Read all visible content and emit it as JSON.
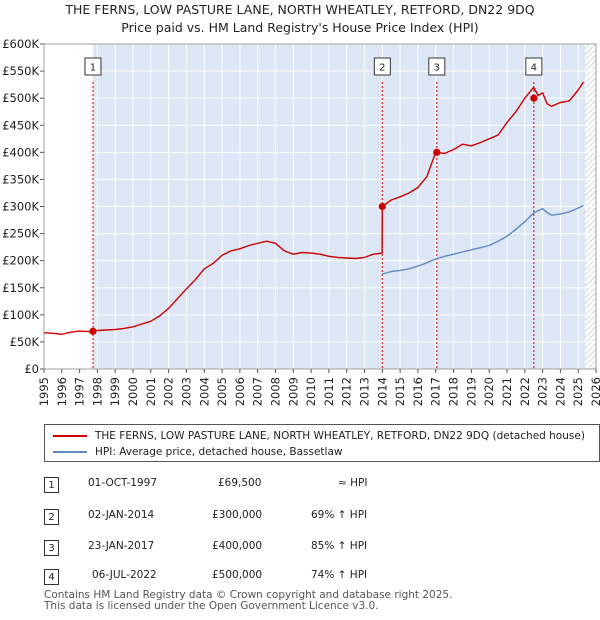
{
  "chart_data": {
    "type": "line",
    "title": "THE FERNS, LOW PASTURE LANE, NORTH WHEATLEY, RETFORD, DN22 9DQ",
    "subtitle": "Price paid vs. HM Land Registry's House Price Index (HPI)",
    "xlim": [
      1995,
      2026
    ],
    "ylim": [
      0,
      600000
    ],
    "x_ticks": [
      "1995",
      "1996",
      "1997",
      "1998",
      "1999",
      "2000",
      "2001",
      "2002",
      "2003",
      "2004",
      "2005",
      "2006",
      "2007",
      "2008",
      "2009",
      "2010",
      "2011",
      "2012",
      "2013",
      "2014",
      "2015",
      "2016",
      "2017",
      "2018",
      "2019",
      "2020",
      "2021",
      "2022",
      "2023",
      "2024",
      "2025",
      "2026"
    ],
    "y_ticks": [
      {
        "value": 0,
        "label": "£0"
      },
      {
        "value": 50000,
        "label": "£50K"
      },
      {
        "value": 100000,
        "label": "£100K"
      },
      {
        "value": 150000,
        "label": "£150K"
      },
      {
        "value": 200000,
        "label": "£200K"
      },
      {
        "value": 250000,
        "label": "£250K"
      },
      {
        "value": 300000,
        "label": "£300K"
      },
      {
        "value": 350000,
        "label": "£350K"
      },
      {
        "value": 400000,
        "label": "£400K"
      },
      {
        "value": 450000,
        "label": "£450K"
      },
      {
        "value": 500000,
        "label": "£500K"
      },
      {
        "value": 550000,
        "label": "£550K"
      },
      {
        "value": 600000,
        "label": "£600K"
      }
    ],
    "shaded_region": {
      "from": 1997.75,
      "to": 2025.4,
      "color": "#dde6f4"
    },
    "hatch_from": 2025.4,
    "series": [
      {
        "name": "THE FERNS, LOW PASTURE LANE, NORTH WHEATLEY, RETFORD, DN22 9DQ (detached house)",
        "color": "#cc0000",
        "x": [
          1995,
          1995.5,
          1996,
          1996.5,
          1997,
          1997.5,
          1997.75,
          1998,
          1998.5,
          1999,
          1999.5,
          2000,
          2000.5,
          2001,
          2001.5,
          2002,
          2002.5,
          2003,
          2003.5,
          2004,
          2004.5,
          2005,
          2005.5,
          2006,
          2006.5,
          2007,
          2007.5,
          2008,
          2008.5,
          2009,
          2009.5,
          2010,
          2010.5,
          2011,
          2011.5,
          2012,
          2012.5,
          2013,
          2013.5,
          2013.99,
          2014.0,
          2014.5,
          2015,
          2015.5,
          2016,
          2016.5,
          2017.0,
          2017.5,
          2018,
          2018.5,
          2019,
          2019.5,
          2020,
          2020.5,
          2021,
          2021.5,
          2022.0,
          2022.5,
          2022.75,
          2023,
          2023.25,
          2023.5,
          2024,
          2024.5,
          2025,
          2025.3
        ],
        "values": [
          67000,
          66000,
          64000,
          68000,
          70000,
          69000,
          69500,
          71000,
          72000,
          73000,
          75000,
          78000,
          83000,
          88000,
          98000,
          112000,
          130000,
          148000,
          165000,
          185000,
          195000,
          210000,
          218000,
          222000,
          228000,
          232000,
          236000,
          232000,
          218000,
          212000,
          215000,
          214000,
          212000,
          208000,
          206000,
          205000,
          204000,
          206000,
          212000,
          214000,
          300000,
          312000,
          318000,
          325000,
          335000,
          355000,
          400000,
          398000,
          405000,
          415000,
          412000,
          418000,
          425000,
          432000,
          455000,
          475000,
          500000,
          520000,
          505000,
          510000,
          490000,
          485000,
          492000,
          495000,
          515000,
          530000
        ]
      },
      {
        "name": "HPI: Average price, detached house, Bassetlaw",
        "color": "#5b8ac6",
        "x": [
          2013.99,
          2014.5,
          2015,
          2015.5,
          2016,
          2016.5,
          2017,
          2017.5,
          2018,
          2018.5,
          2019,
          2019.5,
          2020,
          2020.5,
          2021,
          2021.5,
          2022,
          2022.5,
          2022.75,
          2023,
          2023.25,
          2023.5,
          2024,
          2024.5,
          2025,
          2025.3
        ],
        "values": [
          175000,
          180000,
          182000,
          185000,
          190000,
          196000,
          203000,
          208000,
          212000,
          216000,
          220000,
          224000,
          228000,
          236000,
          245000,
          258000,
          272000,
          288000,
          292000,
          296000,
          289000,
          284000,
          286000,
          290000,
          297000,
          302000
        ]
      }
    ],
    "sales": [
      {
        "id": "1",
        "year": 1997.75,
        "price": 69500
      },
      {
        "id": "2",
        "year": 2014.0,
        "price": 300000
      },
      {
        "id": "3",
        "year": 2017.06,
        "price": 400000
      },
      {
        "id": "4",
        "year": 2022.51,
        "price": 500000
      }
    ]
  },
  "legend": {
    "property_label": "THE FERNS, LOW PASTURE LANE, NORTH WHEATLEY, RETFORD, DN22 9DQ (detached house)",
    "hpi_label": "HPI: Average price, detached house, Bassetlaw"
  },
  "sales_table": [
    {
      "id": "1",
      "date": "01-OCT-1997",
      "price": "£69,500",
      "hpi": "≈ HPI"
    },
    {
      "id": "2",
      "date": "02-JAN-2014",
      "price": "£300,000",
      "hpi": "69% ↑ HPI"
    },
    {
      "id": "3",
      "date": "23-JAN-2017",
      "price": "£400,000",
      "hpi": "85% ↑ HPI"
    },
    {
      "id": "4",
      "date": "06-JUL-2022",
      "price": "£500,000",
      "hpi": "74% ↑ HPI"
    }
  ],
  "footer": {
    "line1": "Contains HM Land Registry data © Crown copyright and database right 2025.",
    "line2": "This data is licensed under the Open Government Licence v3.0."
  },
  "colors": {
    "property": "#cc0000",
    "hpi": "#5b8ac6",
    "shade": "#dde6f4"
  }
}
